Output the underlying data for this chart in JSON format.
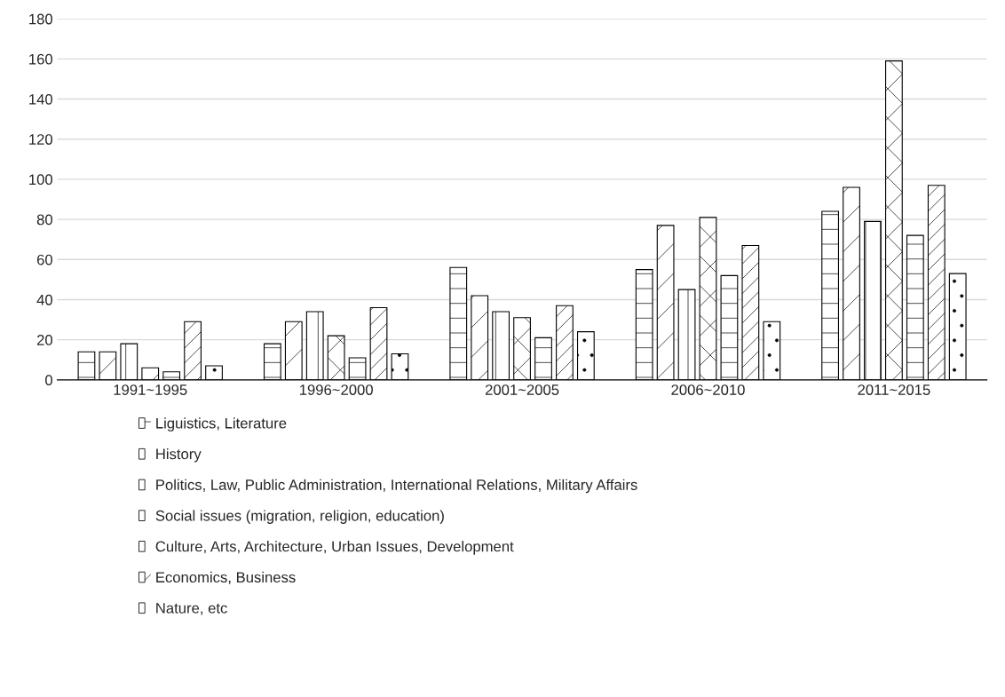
{
  "chart_data": {
    "type": "bar",
    "categories": [
      "1991~1995",
      "1996~2000",
      "2001~2005",
      "2006~2010",
      "2011~2015"
    ],
    "series": [
      {
        "name": "Liguistics, Literature",
        "color": "#ffffff",
        "values": [
          14,
          18,
          56,
          55,
          84
        ]
      },
      {
        "name": "History",
        "color": "#ffffff",
        "values": [
          14,
          29,
          42,
          77,
          96
        ]
      },
      {
        "name": "Politics, Law, Public Administration, International Relations, Military Affairs",
        "color": "#ffffff",
        "values": [
          18,
          34,
          34,
          45,
          79
        ]
      },
      {
        "name": "Social issues (migration, religion, education)",
        "color": "#ffffff",
        "values": [
          6,
          22,
          31,
          81,
          159
        ]
      },
      {
        "name": "Culture, Arts, Architecture, Urban Issues, Development",
        "color": "#ffffff",
        "values": [
          4,
          11,
          21,
          52,
          72
        ]
      },
      {
        "name": "Economics, Business",
        "color": "#ffffff",
        "values": [
          29,
          36,
          37,
          67,
          97
        ]
      },
      {
        "name": "Nature, etc",
        "color": "#ffffff",
        "values": [
          7,
          13,
          24,
          29,
          53
        ]
      }
    ],
    "ylim": [
      0,
      180
    ],
    "yticks": [
      0,
      20,
      40,
      60,
      80,
      100,
      120,
      140,
      160,
      180
    ],
    "grid": "y",
    "legend": "bottom"
  }
}
